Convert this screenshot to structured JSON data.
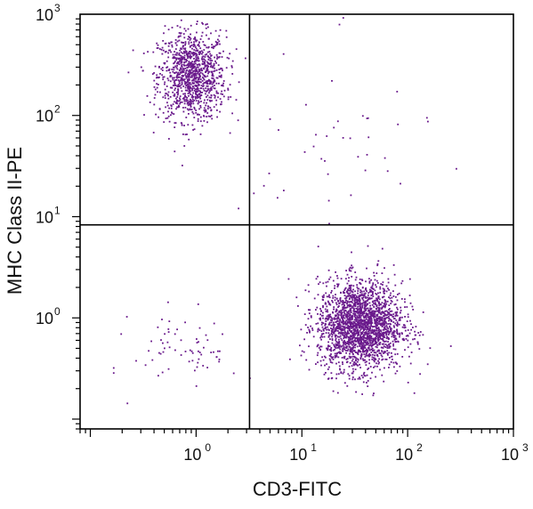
{
  "chart_data": {
    "type": "scatter",
    "title": "",
    "xlabel": "CD3-FITC",
    "ylabel": "MHC Class II-PE",
    "x_scale": "log",
    "y_scale": "log",
    "xlim": [
      0.08,
      1000
    ],
    "ylim": [
      0.08,
      1000
    ],
    "x_ticks": [
      {
        "base": "10",
        "exp": "0",
        "value": 1
      },
      {
        "base": "10",
        "exp": "1",
        "value": 10
      },
      {
        "base": "10",
        "exp": "2",
        "value": 100
      },
      {
        "base": "10",
        "exp": "3",
        "value": 1000
      }
    ],
    "y_ticks": [
      {
        "base": "10",
        "exp": "0",
        "value": 1
      },
      {
        "base": "10",
        "exp": "1",
        "value": 10
      },
      {
        "base": "10",
        "exp": "2",
        "value": 100
      },
      {
        "base": "10",
        "exp": "3",
        "value": 1000
      }
    ],
    "quadrant_gates": {
      "x": 3.2,
      "y": 8.3
    },
    "point_color": "#6a1a8c",
    "grid": false,
    "legend": "none",
    "populations": [
      {
        "quadrant": "upper-left",
        "x_center": 0.9,
        "y_center": 250,
        "x_spread_log": 0.16,
        "y_spread_log": 0.22,
        "count": 1100
      },
      {
        "quadrant": "lower-right",
        "x_center": 35,
        "y_center": 0.85,
        "x_spread_log": 0.2,
        "y_spread_log": 0.22,
        "count": 2200
      },
      {
        "quadrant": "lower-left",
        "x_center": 0.8,
        "y_center": 0.5,
        "x_spread_log": 0.25,
        "y_spread_log": 0.2,
        "count": 70
      },
      {
        "quadrant": "upper-right",
        "x_center": 20,
        "y_center": 40,
        "x_spread_log": 0.45,
        "y_spread_log": 0.5,
        "count": 45
      }
    ]
  }
}
